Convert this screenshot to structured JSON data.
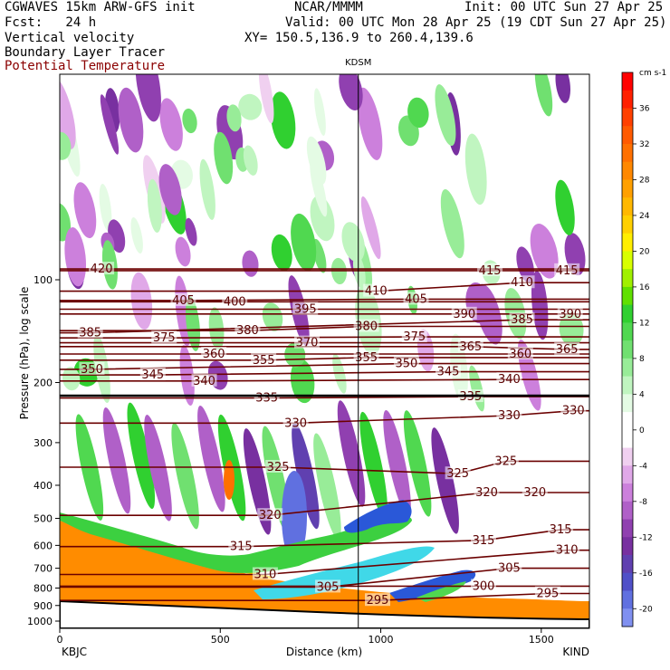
{
  "header": {
    "model": "CGWAVES 15km ARW-GFS init",
    "org": "NCAR/MMMM",
    "init": "Init: 00 UTC Sun 27 Apr 25",
    "fcst": "Fcst:   24 h",
    "valid": "Valid: 00 UTC Mon 28 Apr 25 (19 CDT Sun 27 Apr 25)",
    "field1": "Vertical velocity",
    "field2": "Boundary Layer Tracer",
    "field3": "Potential Temperature",
    "xy": "XY= 150.5,136.9 to 260.4,139.6"
  },
  "chart_data": {
    "type": "heatmap",
    "station_marker": "KDSM",
    "xlabel": "Distance (km)",
    "ylabel": "Pressure (hPa), log scale",
    "x_endpoints": {
      "left": "KBJC",
      "right": "KIND"
    },
    "xlim": [
      0,
      1650
    ],
    "ylim_hpa": [
      1050,
      25
    ],
    "y_log_scale": true,
    "x_ticks": [
      0,
      500,
      1000,
      1500
    ],
    "y_ticks": [
      100,
      200,
      300,
      400,
      500,
      600,
      700,
      800,
      900,
      1000
    ],
    "station_x_km": 930,
    "colorbar": {
      "units": "cm s-1",
      "labels": [
        36,
        32,
        28,
        24,
        20,
        16,
        12,
        8,
        4,
        0,
        -4,
        -8,
        -12,
        -16,
        -20
      ],
      "levels": [
        {
          "from": 38,
          "to": 40,
          "color": "#ff0000"
        },
        {
          "from": 36,
          "to": 38,
          "color": "#ff2000"
        },
        {
          "from": 34,
          "to": 36,
          "color": "#ff4000"
        },
        {
          "from": 32,
          "to": 34,
          "color": "#ff5a00"
        },
        {
          "from": 30,
          "to": 32,
          "color": "#ff7000"
        },
        {
          "from": 28,
          "to": 30,
          "color": "#ff8800"
        },
        {
          "from": 26,
          "to": 28,
          "color": "#ffa000"
        },
        {
          "from": 24,
          "to": 26,
          "color": "#ffb800"
        },
        {
          "from": 22,
          "to": 24,
          "color": "#ffd000"
        },
        {
          "from": 20,
          "to": 22,
          "color": "#ffee00"
        },
        {
          "from": 18,
          "to": 20,
          "color": "#d8ff00"
        },
        {
          "from": 16,
          "to": 18,
          "color": "#a0f000"
        },
        {
          "from": 14,
          "to": 16,
          "color": "#60e000"
        },
        {
          "from": 12,
          "to": 14,
          "color": "#30d030"
        },
        {
          "from": 10,
          "to": 12,
          "color": "#50d850"
        },
        {
          "from": 8,
          "to": 10,
          "color": "#70e070"
        },
        {
          "from": 6,
          "to": 8,
          "color": "#98ec98"
        },
        {
          "from": 4,
          "to": 6,
          "color": "#c0f5c0"
        },
        {
          "from": 2,
          "to": 4,
          "color": "#e4fbe4"
        },
        {
          "from": -2,
          "to": 2,
          "color": "#ffffff"
        },
        {
          "from": -4,
          "to": -2,
          "color": "#f0d0f0"
        },
        {
          "from": -6,
          "to": -4,
          "color": "#e0a8e8"
        },
        {
          "from": -8,
          "to": -6,
          "color": "#cc80dc"
        },
        {
          "from": -10,
          "to": -8,
          "color": "#b060c8"
        },
        {
          "from": -12,
          "to": -10,
          "color": "#9040b0"
        },
        {
          "from": -14,
          "to": -12,
          "color": "#7830a0"
        },
        {
          "from": -16,
          "to": -14,
          "color": "#6040b0"
        },
        {
          "from": -18,
          "to": -16,
          "color": "#5050c8"
        },
        {
          "from": -20,
          "to": -18,
          "color": "#6070e0"
        },
        {
          "from": -22,
          "to": -20,
          "color": "#8090f0"
        }
      ]
    },
    "theta_labels": [
      {
        "value": 420,
        "x_km": 130,
        "p": 93
      },
      {
        "value": 405,
        "x_km": 385,
        "p": 115
      },
      {
        "value": 400,
        "x_km": 545,
        "p": 116
      },
      {
        "value": 395,
        "x_km": 765,
        "p": 122
      },
      {
        "value": 410,
        "x_km": 985,
        "p": 108
      },
      {
        "value": 405,
        "x_km": 1110,
        "p": 114
      },
      {
        "value": 415,
        "x_km": 1340,
        "p": 94
      },
      {
        "value": 410,
        "x_km": 1440,
        "p": 102
      },
      {
        "value": 415,
        "x_km": 1580,
        "p": 94
      },
      {
        "value": 390,
        "x_km": 1260,
        "p": 126
      },
      {
        "value": 385,
        "x_km": 1440,
        "p": 131
      },
      {
        "value": 390,
        "x_km": 1590,
        "p": 126
      },
      {
        "value": 385,
        "x_km": 95,
        "p": 143
      },
      {
        "value": 375,
        "x_km": 325,
        "p": 148
      },
      {
        "value": 380,
        "x_km": 585,
        "p": 141
      },
      {
        "value": 370,
        "x_km": 770,
        "p": 153
      },
      {
        "value": 380,
        "x_km": 955,
        "p": 137
      },
      {
        "value": 375,
        "x_km": 1105,
        "p": 147
      },
      {
        "value": 365,
        "x_km": 1280,
        "p": 157
      },
      {
        "value": 360,
        "x_km": 1435,
        "p": 165
      },
      {
        "value": 365,
        "x_km": 1580,
        "p": 160
      },
      {
        "value": 360,
        "x_km": 480,
        "p": 165
      },
      {
        "value": 355,
        "x_km": 635,
        "p": 172
      },
      {
        "value": 355,
        "x_km": 955,
        "p": 169
      },
      {
        "value": 350,
        "x_km": 1080,
        "p": 176
      },
      {
        "value": 345,
        "x_km": 1210,
        "p": 186
      },
      {
        "value": 340,
        "x_km": 1400,
        "p": 196
      },
      {
        "value": 350,
        "x_km": 100,
        "p": 183
      },
      {
        "value": 345,
        "x_km": 290,
        "p": 190
      },
      {
        "value": 340,
        "x_km": 450,
        "p": 198
      },
      {
        "value": 335,
        "x_km": 645,
        "p": 222
      },
      {
        "value": 335,
        "x_km": 1280,
        "p": 220
      },
      {
        "value": 330,
        "x_km": 735,
        "p": 263
      },
      {
        "value": 330,
        "x_km": 1400,
        "p": 250
      },
      {
        "value": 330,
        "x_km": 1600,
        "p": 242
      },
      {
        "value": 325,
        "x_km": 680,
        "p": 354
      },
      {
        "value": 325,
        "x_km": 1240,
        "p": 370
      },
      {
        "value": 325,
        "x_km": 1390,
        "p": 340
      },
      {
        "value": 320,
        "x_km": 655,
        "p": 490
      },
      {
        "value": 320,
        "x_km": 1330,
        "p": 420
      },
      {
        "value": 320,
        "x_km": 1480,
        "p": 420
      },
      {
        "value": 315,
        "x_km": 565,
        "p": 605
      },
      {
        "value": 315,
        "x_km": 1320,
        "p": 580
      },
      {
        "value": 315,
        "x_km": 1560,
        "p": 540
      },
      {
        "value": 310,
        "x_km": 640,
        "p": 730
      },
      {
        "value": 310,
        "x_km": 1580,
        "p": 620
      },
      {
        "value": 305,
        "x_km": 835,
        "p": 795
      },
      {
        "value": 305,
        "x_km": 1400,
        "p": 700
      },
      {
        "value": 300,
        "x_km": 1320,
        "p": 790
      },
      {
        "value": 295,
        "x_km": 990,
        "p": 870
      },
      {
        "value": 295,
        "x_km": 1520,
        "p": 830
      }
    ]
  }
}
